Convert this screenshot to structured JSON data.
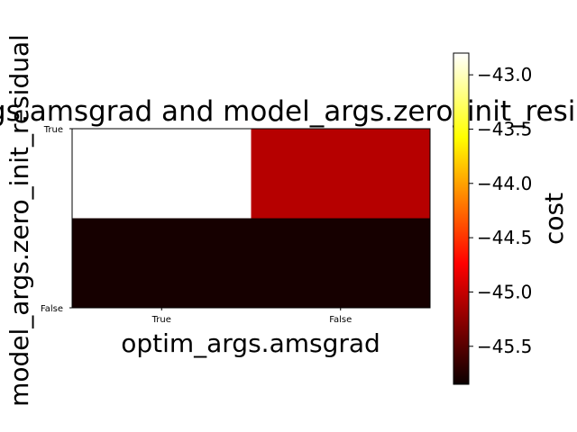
{
  "chart_data": {
    "type": "heatmap",
    "title": "optim_args.amsgrad and model_args.zero_init_residual",
    "xlabel": "optim_args.amsgrad",
    "ylabel": "model_args.zero_init_residual",
    "x_categories": [
      "True",
      "False"
    ],
    "y_categories": [
      "True",
      "False"
    ],
    "cells": [
      {
        "x": "True",
        "y": "True",
        "value": -42.8
      },
      {
        "x": "False",
        "y": "True",
        "value": -45.1
      },
      {
        "x": "True",
        "y": "False",
        "value": -45.8
      },
      {
        "x": "False",
        "y": "False",
        "value": -45.8
      }
    ],
    "colorbar": {
      "label": "cost",
      "colormap": "hot",
      "range": [
        -45.85,
        -42.8
      ],
      "ticks": [
        "−43.0",
        "−43.5",
        "−44.0",
        "−44.5",
        "−45.0",
        "−45.5"
      ],
      "tick_values": [
        -43.0,
        -43.5,
        -44.0,
        -44.5,
        -45.0,
        -45.5
      ]
    }
  }
}
